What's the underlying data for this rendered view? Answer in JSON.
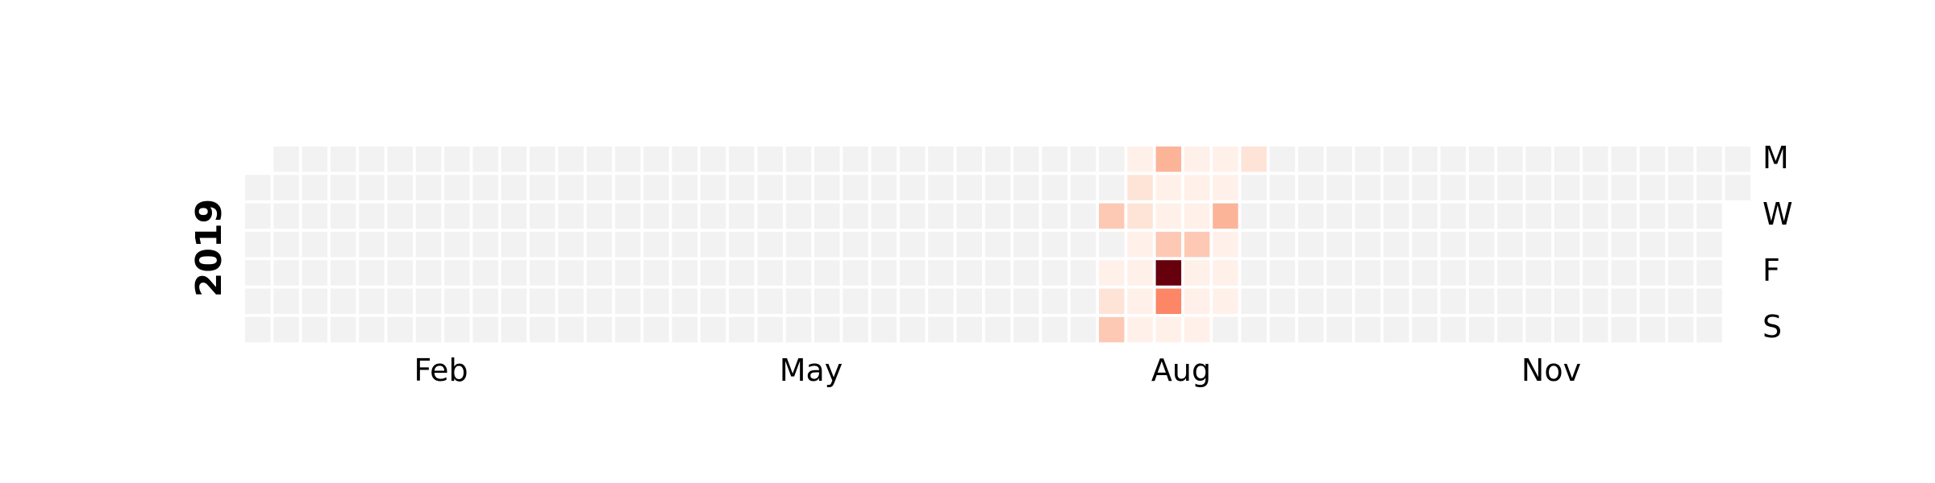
{
  "chart_data": {
    "type": "heatmap",
    "year_label": "2019",
    "month_labels": [
      "Feb",
      "May",
      "Aug",
      "Nov"
    ],
    "weekday_labels": [
      "M",
      "W",
      "F",
      "S"
    ],
    "colors": {
      "background": "#ffffff",
      "empty": "#f2f2f2",
      "scale": [
        "#fff5f0",
        "#fee0d2",
        "#fcbba1",
        "#fc9272",
        "#fb6a4a",
        "#de2d26",
        "#67000d"
      ]
    },
    "nonzero_days": [
      {
        "date": "2019-07-31",
        "level": 0.27
      },
      {
        "date": "2019-08-02",
        "level": 0.04
      },
      {
        "date": "2019-08-03",
        "level": 0.14
      },
      {
        "date": "2019-08-04",
        "level": 0.27
      },
      {
        "date": "2019-08-05",
        "level": 0.04
      },
      {
        "date": "2019-08-06",
        "level": 0.14
      },
      {
        "date": "2019-08-07",
        "level": 0.14
      },
      {
        "date": "2019-08-08",
        "level": 0.04
      },
      {
        "date": "2019-08-09",
        "level": 0.04
      },
      {
        "date": "2019-08-10",
        "level": 0.04
      },
      {
        "date": "2019-08-11",
        "level": 0.04
      },
      {
        "date": "2019-08-12",
        "level": 0.36
      },
      {
        "date": "2019-08-13",
        "level": 0.04
      },
      {
        "date": "2019-08-14",
        "level": 0.04
      },
      {
        "date": "2019-08-15",
        "level": 0.27
      },
      {
        "date": "2019-08-16",
        "level": 1.0
      },
      {
        "date": "2019-08-17",
        "level": 0.55
      },
      {
        "date": "2019-08-18",
        "level": 0.04
      },
      {
        "date": "2019-08-19",
        "level": 0.04
      },
      {
        "date": "2019-08-20",
        "level": 0.04
      },
      {
        "date": "2019-08-21",
        "level": 0.04
      },
      {
        "date": "2019-08-22",
        "level": 0.27
      },
      {
        "date": "2019-08-23",
        "level": 0.04
      },
      {
        "date": "2019-08-24",
        "level": 0.04
      },
      {
        "date": "2019-08-25",
        "level": 0.04
      },
      {
        "date": "2019-08-26",
        "level": 0.04
      },
      {
        "date": "2019-08-27",
        "level": 0.04
      },
      {
        "date": "2019-08-28",
        "level": 0.36
      },
      {
        "date": "2019-08-29",
        "level": 0.04
      },
      {
        "date": "2019-08-30",
        "level": 0.04
      },
      {
        "date": "2019-08-31",
        "level": 0.04
      },
      {
        "date": "2019-09-02",
        "level": 0.14
      }
    ]
  }
}
